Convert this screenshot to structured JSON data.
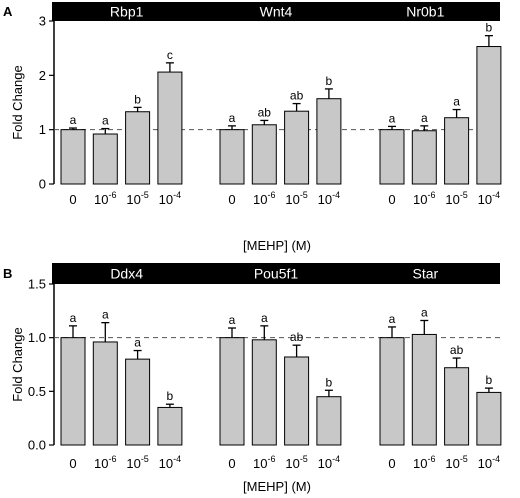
{
  "chart_data": [
    {
      "type": "bar",
      "panel": "A",
      "ylabel": "Fold Change",
      "xlabel": "[MEHP] (M)",
      "ylim": [
        0,
        3
      ],
      "yticks": [
        "0",
        "1",
        "2",
        "3"
      ],
      "reference_line": 1.0,
      "categories": [
        {
          "base": "0",
          "exp": ""
        },
        {
          "base": "10",
          "exp": "-6"
        },
        {
          "base": "10",
          "exp": "-5"
        },
        {
          "base": "10",
          "exp": "-4"
        }
      ],
      "groups": [
        {
          "name": "Rbp1",
          "values": [
            1.0,
            0.92,
            1.33,
            2.06
          ],
          "errors": [
            0.03,
            0.1,
            0.08,
            0.17
          ],
          "letters": [
            "a",
            "a",
            "b",
            "c"
          ]
        },
        {
          "name": "Wnt4",
          "values": [
            1.0,
            1.09,
            1.34,
            1.57
          ],
          "errors": [
            0.07,
            0.08,
            0.14,
            0.18
          ],
          "letters": [
            "a",
            "ab",
            "ab",
            "b"
          ]
        },
        {
          "name": "Nr0b1",
          "values": [
            1.0,
            0.98,
            1.22,
            2.53
          ],
          "errors": [
            0.06,
            0.09,
            0.15,
            0.2
          ],
          "letters": [
            "a",
            "a",
            "a",
            "b"
          ]
        }
      ]
    },
    {
      "type": "bar",
      "panel": "B",
      "ylabel": "Fold Change",
      "xlabel": "[MEHP] (M)",
      "ylim": [
        0,
        1.5
      ],
      "yticks": [
        "0.0",
        "0.5",
        "1.0",
        "1.5"
      ],
      "reference_line": 1.0,
      "categories": [
        {
          "base": "0",
          "exp": ""
        },
        {
          "base": "10",
          "exp": "-6"
        },
        {
          "base": "10",
          "exp": "-5"
        },
        {
          "base": "10",
          "exp": "-4"
        }
      ],
      "groups": [
        {
          "name": "Ddx4",
          "values": [
            1.0,
            0.96,
            0.8,
            0.35
          ],
          "errors": [
            0.11,
            0.18,
            0.08,
            0.03
          ],
          "letters": [
            "a",
            "a",
            "a",
            "b"
          ]
        },
        {
          "name": "Pou5f1",
          "values": [
            1.0,
            0.98,
            0.82,
            0.45
          ],
          "errors": [
            0.09,
            0.13,
            0.11,
            0.06
          ],
          "letters": [
            "a",
            "a",
            "ab",
            "b"
          ]
        },
        {
          "name": "Star",
          "values": [
            1.0,
            1.03,
            0.72,
            0.49
          ],
          "errors": [
            0.1,
            0.13,
            0.09,
            0.04
          ],
          "letters": [
            "a",
            "a",
            "ab",
            "b"
          ]
        }
      ]
    }
  ]
}
